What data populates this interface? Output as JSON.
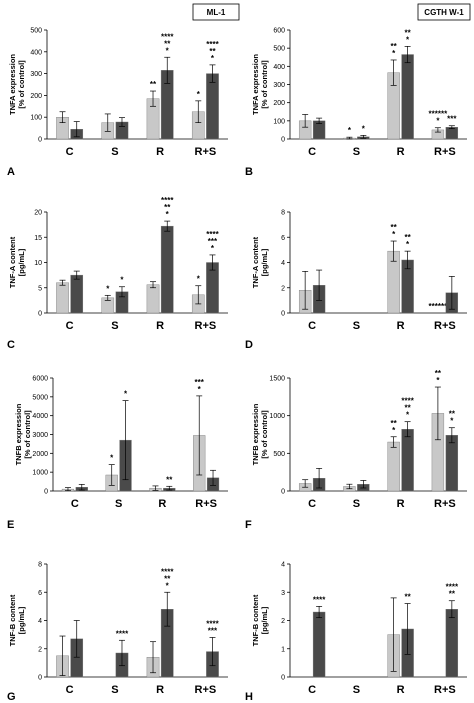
{
  "figure": {
    "cell_labels": [
      "ML-1",
      "CGTH W-1"
    ],
    "colors": {
      "light": "#c8c8c8",
      "dark": "#4a4a4a",
      "axis": "#000000"
    }
  },
  "chart_data": [
    {
      "type": "bar",
      "panel": "A",
      "ylabel": [
        "TNFA expression",
        "[% of control]"
      ],
      "ylim": [
        0,
        500
      ],
      "yticks": [
        0,
        100,
        200,
        300,
        400,
        500
      ],
      "categories": [
        "C",
        "S",
        "R",
        "R+S"
      ],
      "series": [
        {
          "values": [
            100,
            75,
            185,
            125
          ],
          "errors": [
            25,
            40,
            35,
            50
          ]
        },
        {
          "values": [
            45,
            78,
            315,
            300
          ],
          "errors": [
            35,
            20,
            60,
            40
          ]
        }
      ],
      "annotations": [
        [
          "",
          ""
        ],
        [
          "",
          ""
        ],
        [
          "**",
          "****|**|*"
        ],
        [
          "*",
          "****|**|*"
        ]
      ]
    },
    {
      "type": "bar",
      "panel": "B",
      "ylabel": [
        "TNFA expression",
        "[% of control]"
      ],
      "ylim": [
        0,
        600
      ],
      "yticks": [
        0,
        100,
        200,
        300,
        400,
        500,
        600
      ],
      "categories": [
        "C",
        "S",
        "R",
        "R+S"
      ],
      "series": [
        {
          "values": [
            100,
            5,
            365,
            50
          ],
          "errors": [
            35,
            5,
            70,
            12
          ]
        },
        {
          "values": [
            100,
            12,
            465,
            65
          ],
          "errors": [
            15,
            8,
            45,
            8
          ]
        }
      ],
      "annotations": [
        [
          "",
          ""
        ],
        [
          "*",
          "*"
        ],
        [
          "**|*",
          "**|*"
        ],
        [
          "******|*",
          "***"
        ]
      ]
    },
    {
      "type": "bar",
      "panel": "C",
      "ylabel": [
        "TNF-A content",
        "[pg/mL]"
      ],
      "ylim": [
        0,
        20
      ],
      "yticks": [
        0,
        5,
        10,
        15,
        20
      ],
      "categories": [
        "C",
        "S",
        "R",
        "R+S"
      ],
      "series": [
        {
          "values": [
            6.0,
            3.0,
            5.6,
            3.6
          ],
          "errors": [
            0.5,
            0.5,
            0.6,
            1.8
          ]
        },
        {
          "values": [
            7.5,
            4.2,
            17.2,
            10.0
          ],
          "errors": [
            0.8,
            1.0,
            1.0,
            1.5
          ]
        }
      ],
      "annotations": [
        [
          "",
          ""
        ],
        [
          "*",
          "*"
        ],
        [
          "",
          "****|**|*"
        ],
        [
          "*",
          "****|***|*"
        ]
      ]
    },
    {
      "type": "bar",
      "panel": "D",
      "ylabel": [
        "TNF-A content",
        "[pg/mL]"
      ],
      "ylim": [
        0,
        8
      ],
      "yticks": [
        0,
        2,
        4,
        6,
        8
      ],
      "categories": [
        "C",
        "S",
        "R",
        "R+S"
      ],
      "series": [
        {
          "values": [
            1.8,
            0,
            4.9,
            0
          ],
          "errors": [
            1.5,
            0,
            0.8,
            0
          ]
        },
        {
          "values": [
            2.2,
            0,
            4.2,
            1.6
          ],
          "errors": [
            1.2,
            0,
            0.7,
            1.3
          ]
        }
      ],
      "annotations": [
        [
          "",
          ""
        ],
        [
          "",
          ""
        ],
        [
          "**|*",
          "**|*"
        ],
        [
          "******",
          ""
        ]
      ]
    },
    {
      "type": "bar",
      "panel": "E",
      "ylabel": [
        "TNFB expression",
        "[% of control]"
      ],
      "ylim": [
        0,
        6000
      ],
      "yticks": [
        0,
        1000,
        2000,
        3000,
        4000,
        5000,
        6000
      ],
      "categories": [
        "C",
        "S",
        "R",
        "R+S"
      ],
      "series": [
        {
          "values": [
            100,
            850,
            150,
            2950
          ],
          "errors": [
            80,
            550,
            120,
            2100
          ]
        },
        {
          "values": [
            200,
            2700,
            150,
            700
          ],
          "errors": [
            150,
            2100,
            100,
            400
          ]
        }
      ],
      "annotations": [
        [
          "",
          ""
        ],
        [
          "*",
          "*"
        ],
        [
          "",
          "**"
        ],
        [
          "***|*",
          ""
        ]
      ]
    },
    {
      "type": "bar",
      "panel": "F",
      "ylabel": [
        "TNFB expression",
        "[% of control]"
      ],
      "ylim": [
        0,
        1500
      ],
      "yticks": [
        0,
        500,
        1000,
        1500
      ],
      "categories": [
        "C",
        "S",
        "R",
        "R+S"
      ],
      "series": [
        {
          "values": [
            100,
            60,
            650,
            1030
          ],
          "errors": [
            50,
            30,
            70,
            350
          ]
        },
        {
          "values": [
            170,
            90,
            820,
            740
          ],
          "errors": [
            130,
            50,
            100,
            100
          ]
        }
      ],
      "annotations": [
        [
          "",
          ""
        ],
        [
          "",
          ""
        ],
        [
          "**|*",
          "****|**|*"
        ],
        [
          "**|*",
          "**|*"
        ]
      ]
    },
    {
      "type": "bar",
      "panel": "G",
      "ylabel": [
        "TNF-B content",
        "[pg/mL]"
      ],
      "ylim": [
        0,
        8
      ],
      "yticks": [
        0,
        2,
        4,
        6,
        8
      ],
      "categories": [
        "C",
        "S",
        "R",
        "R+S"
      ],
      "series": [
        {
          "values": [
            1.5,
            0,
            1.4,
            0
          ],
          "errors": [
            1.4,
            0,
            1.1,
            0
          ]
        },
        {
          "values": [
            2.7,
            1.7,
            4.8,
            1.8
          ],
          "errors": [
            1.3,
            0.9,
            1.2,
            1.0
          ]
        }
      ],
      "annotations": [
        [
          "",
          ""
        ],
        [
          "",
          "****"
        ],
        [
          "",
          "****|**|*"
        ],
        [
          "",
          "****|***"
        ]
      ]
    },
    {
      "type": "bar",
      "panel": "H",
      "ylabel": [
        "TNF-B content",
        "[pg/mL]"
      ],
      "ylim": [
        0,
        4
      ],
      "yticks": [
        0,
        1,
        2,
        3,
        4
      ],
      "categories": [
        "C",
        "S",
        "R",
        "R+S"
      ],
      "series": [
        {
          "values": [
            0,
            0,
            1.5,
            0
          ],
          "errors": [
            0,
            0,
            1.3,
            0
          ]
        },
        {
          "values": [
            2.3,
            0,
            1.7,
            2.4
          ],
          "errors": [
            0.2,
            0,
            0.9,
            0.3
          ]
        }
      ],
      "annotations": [
        [
          "",
          "****"
        ],
        [
          "",
          ""
        ],
        [
          "",
          "**"
        ],
        [
          "",
          "****|**"
        ]
      ]
    }
  ]
}
